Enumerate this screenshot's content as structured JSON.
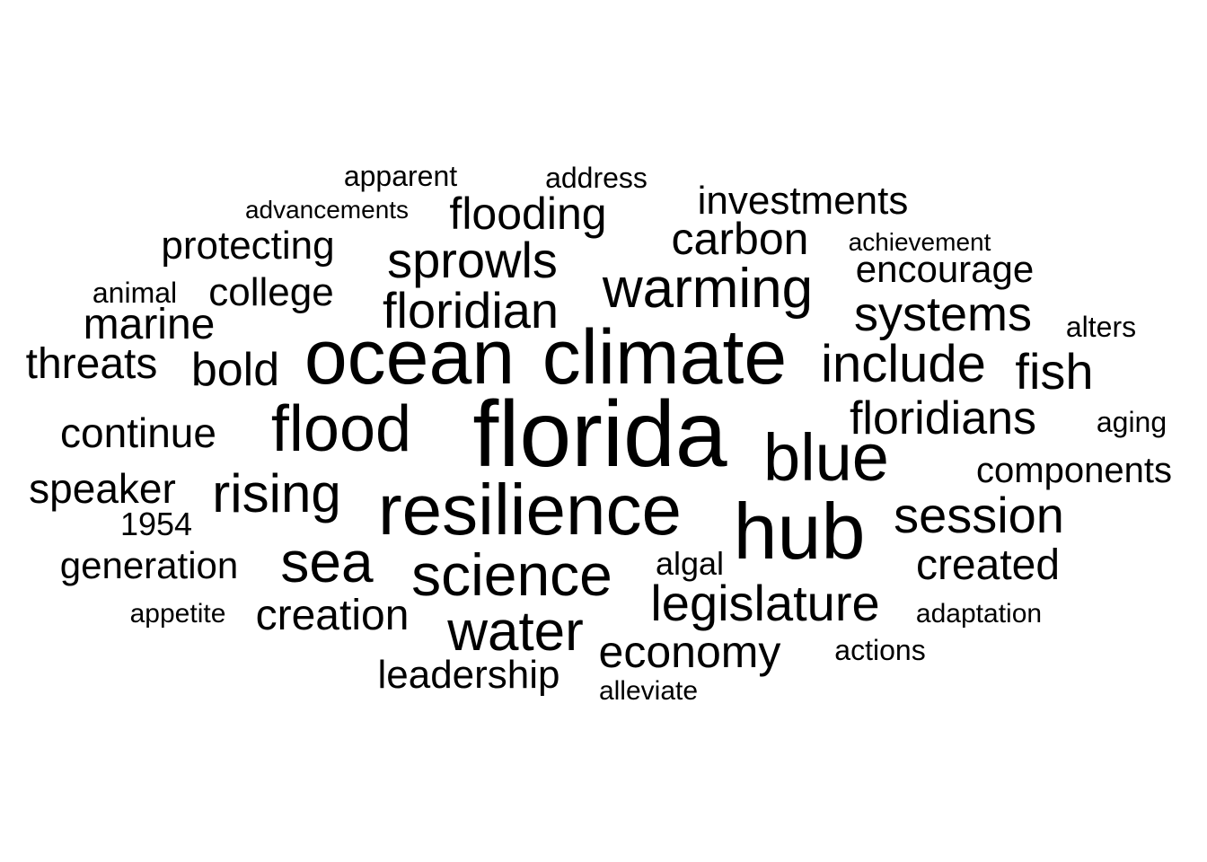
{
  "word_cloud": {
    "color": "#000000",
    "background": "#ffffff",
    "words": [
      {
        "id": "florida",
        "text": "florida"
      },
      {
        "id": "climate",
        "text": "climate"
      },
      {
        "id": "ocean",
        "text": "ocean"
      },
      {
        "id": "resilience",
        "text": "resilience"
      },
      {
        "id": "hub",
        "text": "hub"
      },
      {
        "id": "blue",
        "text": "blue"
      },
      {
        "id": "flood",
        "text": "flood"
      },
      {
        "id": "science",
        "text": "science"
      },
      {
        "id": "sea",
        "text": "sea"
      },
      {
        "id": "water",
        "text": "water"
      },
      {
        "id": "warming",
        "text": "warming"
      },
      {
        "id": "rising",
        "text": "rising"
      },
      {
        "id": "session",
        "text": "session"
      },
      {
        "id": "include",
        "text": "include"
      },
      {
        "id": "legislature",
        "text": "legislature"
      },
      {
        "id": "sprowls",
        "text": "sprowls"
      },
      {
        "id": "floridian",
        "text": "floridian"
      },
      {
        "id": "systems",
        "text": "systems"
      },
      {
        "id": "floridians",
        "text": "floridians"
      },
      {
        "id": "fish",
        "text": "fish"
      },
      {
        "id": "created",
        "text": "created"
      },
      {
        "id": "economy",
        "text": "economy"
      },
      {
        "id": "creation",
        "text": "creation"
      },
      {
        "id": "flooding",
        "text": "flooding"
      },
      {
        "id": "carbon",
        "text": "carbon"
      },
      {
        "id": "bold",
        "text": "bold"
      },
      {
        "id": "marine",
        "text": "marine"
      },
      {
        "id": "leadership",
        "text": "leadership"
      },
      {
        "id": "college",
        "text": "college"
      },
      {
        "id": "encourage",
        "text": "encourage"
      },
      {
        "id": "investments",
        "text": "investments"
      },
      {
        "id": "protecting",
        "text": "protecting"
      },
      {
        "id": "threats",
        "text": "threats"
      },
      {
        "id": "continue",
        "text": "continue"
      },
      {
        "id": "speaker",
        "text": "speaker"
      },
      {
        "id": "generation",
        "text": "generation"
      },
      {
        "id": "components",
        "text": "components"
      },
      {
        "id": "algal",
        "text": "algal"
      },
      {
        "id": "1954",
        "text": "1954"
      },
      {
        "id": "apparent",
        "text": "apparent"
      },
      {
        "id": "address",
        "text": "address"
      },
      {
        "id": "aging",
        "text": "aging"
      },
      {
        "id": "actions",
        "text": "actions"
      },
      {
        "id": "alters",
        "text": "alters"
      },
      {
        "id": "animal",
        "text": "animal"
      },
      {
        "id": "adaptation",
        "text": "adaptation"
      },
      {
        "id": "appetite",
        "text": "appetite"
      },
      {
        "id": "alleviate",
        "text": "alleviate"
      },
      {
        "id": "achievement",
        "text": "achievement"
      },
      {
        "id": "advancements",
        "text": "advancements"
      }
    ]
  }
}
